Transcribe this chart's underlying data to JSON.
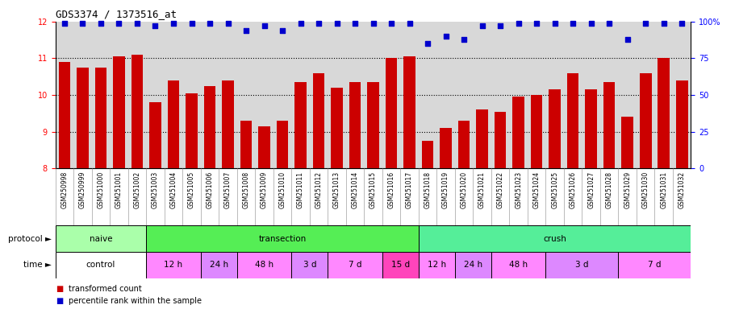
{
  "title": "GDS3374 / 1373516_at",
  "samples": [
    "GSM250998",
    "GSM250999",
    "GSM251000",
    "GSM251001",
    "GSM251002",
    "GSM251003",
    "GSM251004",
    "GSM251005",
    "GSM251006",
    "GSM251007",
    "GSM251008",
    "GSM251009",
    "GSM251010",
    "GSM251011",
    "GSM251012",
    "GSM251013",
    "GSM251014",
    "GSM251015",
    "GSM251016",
    "GSM251017",
    "GSM251018",
    "GSM251019",
    "GSM251020",
    "GSM251021",
    "GSM251022",
    "GSM251023",
    "GSM251024",
    "GSM251025",
    "GSM251026",
    "GSM251027",
    "GSM251028",
    "GSM251029",
    "GSM251030",
    "GSM251031",
    "GSM251032"
  ],
  "bar_values": [
    10.9,
    10.75,
    10.75,
    11.05,
    11.1,
    9.8,
    10.4,
    10.05,
    10.25,
    10.4,
    9.3,
    9.15,
    9.3,
    10.35,
    10.6,
    10.2,
    10.35,
    10.35,
    11.0,
    11.05,
    8.75,
    9.1,
    9.3,
    9.6,
    9.55,
    9.95,
    10.0,
    10.15,
    10.6,
    10.15,
    10.35,
    9.4,
    10.6,
    11.0,
    10.4
  ],
  "percentile_values": [
    99,
    99,
    99,
    99,
    99,
    97,
    99,
    99,
    99,
    99,
    94,
    97,
    94,
    99,
    99,
    99,
    99,
    99,
    99,
    99,
    85,
    90,
    88,
    97,
    97,
    99,
    99,
    99,
    99,
    99,
    99,
    88,
    99,
    99,
    99
  ],
  "ylim_left": [
    8,
    12
  ],
  "ylim_right": [
    0,
    100
  ],
  "yticks_left": [
    8,
    9,
    10,
    11,
    12
  ],
  "yticks_right": [
    0,
    25,
    50,
    75,
    100
  ],
  "bar_color": "#cc0000",
  "dot_color": "#0000cc",
  "plot_bg_color": "#d8d8d8",
  "xtick_bg_color": "#c0c0c0",
  "protocol_groups": [
    {
      "label": "naive",
      "start": 0,
      "end": 4,
      "color": "#aaffaa"
    },
    {
      "label": "transection",
      "start": 5,
      "end": 19,
      "color": "#55ee55"
    },
    {
      "label": "crush",
      "start": 20,
      "end": 34,
      "color": "#55ee99"
    }
  ],
  "time_groups": [
    {
      "label": "control",
      "start": 0,
      "end": 4,
      "color": "#ffffff"
    },
    {
      "label": "12 h",
      "start": 5,
      "end": 7,
      "color": "#ff88ff"
    },
    {
      "label": "24 h",
      "start": 8,
      "end": 9,
      "color": "#dd88ff"
    },
    {
      "label": "48 h",
      "start": 10,
      "end": 12,
      "color": "#ff88ff"
    },
    {
      "label": "3 d",
      "start": 13,
      "end": 14,
      "color": "#dd88ff"
    },
    {
      "label": "7 d",
      "start": 15,
      "end": 17,
      "color": "#ff88ff"
    },
    {
      "label": "15 d",
      "start": 18,
      "end": 19,
      "color": "#ff44bb"
    },
    {
      "label": "12 h",
      "start": 20,
      "end": 21,
      "color": "#ff88ff"
    },
    {
      "label": "24 h",
      "start": 22,
      "end": 23,
      "color": "#dd88ff"
    },
    {
      "label": "48 h",
      "start": 24,
      "end": 26,
      "color": "#ff88ff"
    },
    {
      "label": "3 d",
      "start": 27,
      "end": 30,
      "color": "#dd88ff"
    },
    {
      "label": "7 d",
      "start": 31,
      "end": 34,
      "color": "#ff88ff"
    }
  ],
  "legend": [
    {
      "label": "transformed count",
      "color": "#cc0000"
    },
    {
      "label": "percentile rank within the sample",
      "color": "#0000cc"
    }
  ]
}
